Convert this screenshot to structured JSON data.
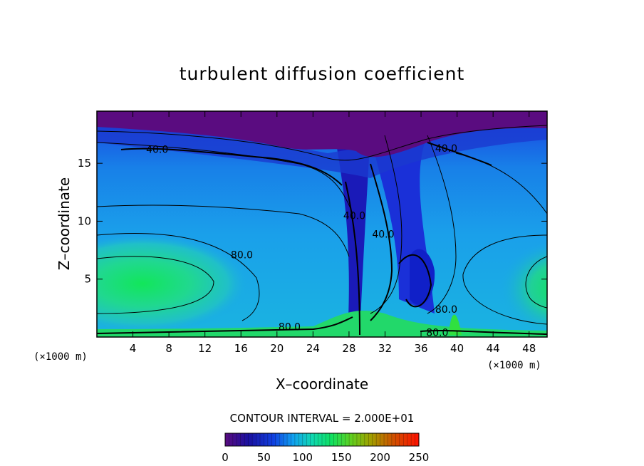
{
  "chart_data": {
    "type": "heatmap",
    "title": "turbulent diffusion coefficient",
    "xlabel": "X–coordinate",
    "ylabel": "Z–coordinate",
    "xlim": [
      0,
      50
    ],
    "ylim": [
      0,
      19.5
    ],
    "x_ticks": [
      "4",
      "8",
      "12",
      "16",
      "20",
      "24",
      "28",
      "32",
      "36",
      "40",
      "44",
      "48"
    ],
    "x_tick_values": [
      4,
      8,
      12,
      16,
      20,
      24,
      28,
      32,
      36,
      40,
      44,
      48
    ],
    "y_ticks": [
      "5",
      "10",
      "15"
    ],
    "y_tick_values": [
      5,
      10,
      15
    ],
    "x_unit_left": "(×1000 m)",
    "x_unit_right": "(×1000 m)",
    "contour_interval_text": "CONTOUR INTERVAL = 2.000E+01",
    "contour_interval": 20,
    "colorbar": {
      "min": 0,
      "max": 250,
      "tick_labels": [
        "0",
        "50",
        "100",
        "150",
        "200",
        "250"
      ],
      "tick_values": [
        0,
        50,
        100,
        150,
        200,
        250
      ]
    },
    "contour_labels": [
      {
        "text": "40.0",
        "x": 6.7,
        "z": 16.2
      },
      {
        "text": "40.0",
        "x": 28.6,
        "z": 10.5
      },
      {
        "text": "40.0",
        "x": 31.8,
        "z": 8.9
      },
      {
        "text": "40.0",
        "x": 38.8,
        "z": 16.3
      },
      {
        "text": "80.0",
        "x": 16.1,
        "z": 7.1
      },
      {
        "text": "80.0",
        "x": 21.4,
        "z": 0.9
      },
      {
        "text": "80.0",
        "x": 38.8,
        "z": 2.4
      },
      {
        "text": "80.0",
        "x": 37.8,
        "z": 0.4
      }
    ]
  }
}
